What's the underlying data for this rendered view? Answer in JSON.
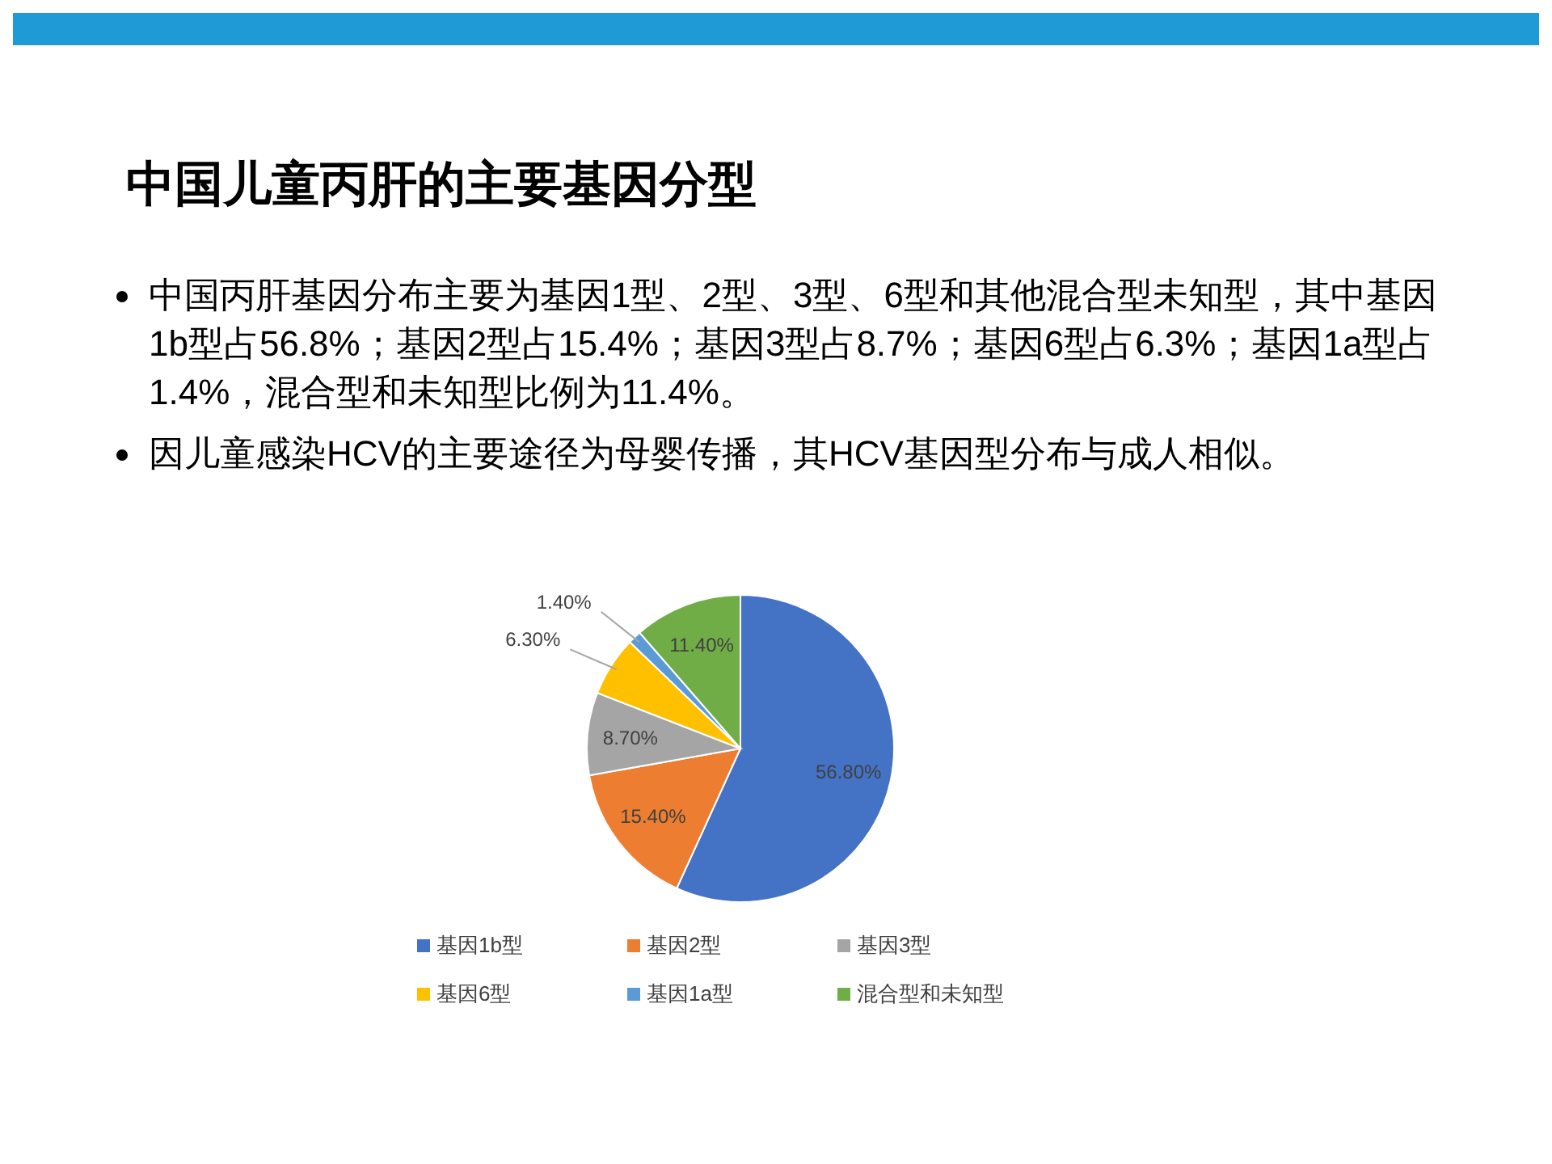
{
  "chart_data": {
    "type": "pie",
    "title": "中国儿童丙肝的主要基因分型",
    "annotations": [
      "中国丙肝基因分布主要为基因1型、2型、3型、6型和其他混合型未知型，其中基因1b型占56.8%；基因2型占15.4%；基因3型占8.7%；基因6型占6.3%；基因1a型占1.4%，混合型和未知型比例为11.4%。",
      "因儿童感染HCV的主要途径为母婴传播，其HCV基因型分布与成人相似。"
    ],
    "categories": [
      "基因1b型",
      "基因2型",
      "基因3型",
      "基因6型",
      "基因1a型",
      "混合型和未知型"
    ],
    "values": [
      56.8,
      15.4,
      8.7,
      6.3,
      1.4,
      11.4
    ],
    "value_labels": [
      "56.80%",
      "15.40%",
      "8.70%",
      "6.30%",
      "1.40%",
      "11.40%"
    ],
    "colors": [
      "#4472c4",
      "#ed7d31",
      "#a5a5a5",
      "#ffc000",
      "#5b9bd5",
      "#70ad47"
    ],
    "legend": "bottom"
  }
}
